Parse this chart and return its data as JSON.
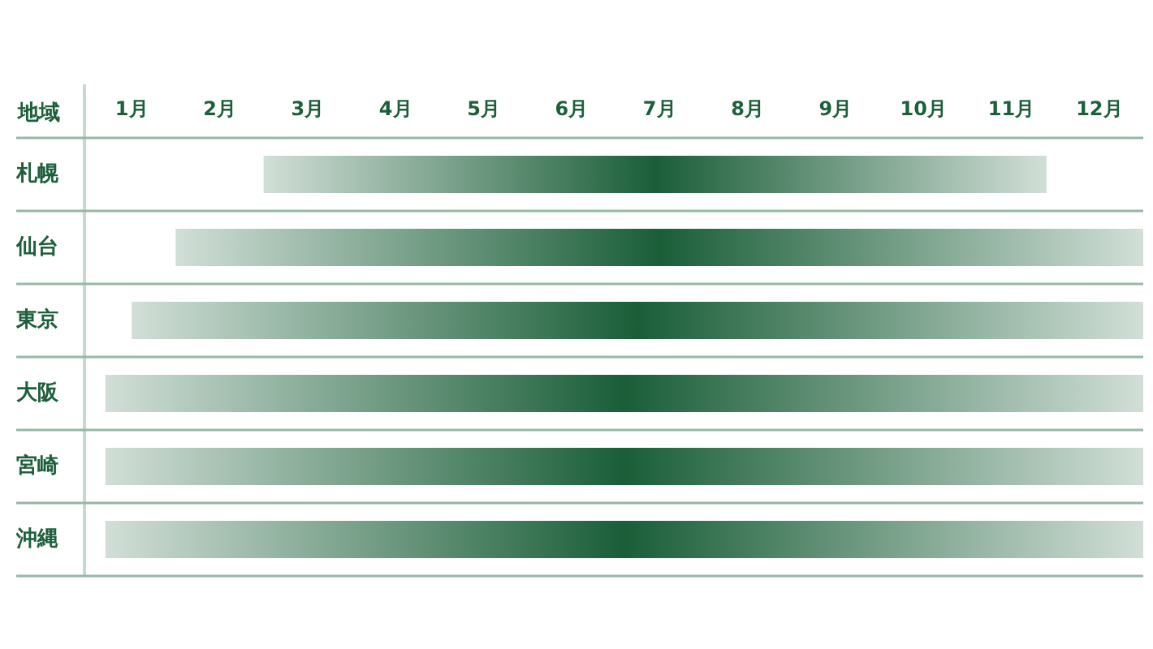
{
  "chart_data": {
    "type": "bar",
    "orientation": "horizontal",
    "ylabel": "地域",
    "categories": [
      "札幌",
      "仙台",
      "東京",
      "大阪",
      "宮崎",
      "沖縄"
    ],
    "base": [
      2.5,
      1.5,
      1.0,
      0.7,
      0.7,
      0.7
    ],
    "values": [
      8.9,
      11.0,
      11.5,
      11.8,
      11.8,
      11.8
    ],
    "color": "#1a5e38",
    "xlim": [
      0.5,
      12.5
    ],
    "xticks": [
      {
        "value": 1,
        "label": "1月"
      },
      {
        "value": 2,
        "label": "2月"
      },
      {
        "value": 3,
        "label": "3月"
      },
      {
        "value": 4,
        "label": "4月"
      },
      {
        "value": 5,
        "label": "5月"
      },
      {
        "value": 6,
        "label": "6月"
      },
      {
        "value": 7,
        "label": "7月"
      },
      {
        "value": 8,
        "label": "8月"
      },
      {
        "value": 9,
        "label": "9月"
      },
      {
        "value": 10,
        "label": "10月"
      },
      {
        "value": 11,
        "label": "11月"
      },
      {
        "value": 12,
        "label": "12月"
      }
    ],
    "grid": "y",
    "legend": false
  }
}
